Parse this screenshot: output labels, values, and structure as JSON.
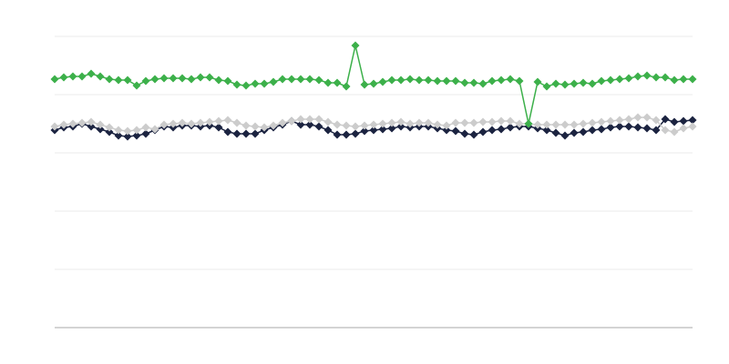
{
  "chart_data": {
    "type": "line",
    "title": "",
    "xlabel": "",
    "ylabel": "",
    "ylim": [
      0,
      320
    ],
    "grid": true,
    "legend": "none",
    "x_count": 71,
    "series": [
      {
        "color": "#1b2340",
        "marker": "diamond",
        "values": [
          217,
          220,
          221,
          224,
          221,
          218,
          215,
          211,
          210,
          211,
          213,
          217,
          221,
          220,
          222,
          222,
          221,
          222,
          220,
          215,
          213,
          213,
          213,
          217,
          220,
          223,
          227,
          223,
          223,
          221,
          217,
          212,
          212,
          213,
          216,
          217,
          218,
          219,
          221,
          220,
          221,
          221,
          219,
          217,
          216,
          213,
          212,
          215,
          217,
          218,
          220,
          221,
          221,
          219,
          217,
          214,
          211,
          214,
          215,
          217,
          218,
          220,
          221,
          221,
          220,
          219,
          217,
          229,
          226,
          227,
          228
        ]
      },
      {
        "color": "#cccccc",
        "marker": "diamond",
        "values": [
          221,
          223,
          224,
          225,
          226,
          223,
          220,
          217,
          216,
          217,
          220,
          218,
          223,
          224,
          225,
          224,
          225,
          226,
          227,
          228,
          225,
          222,
          221,
          220,
          222,
          225,
          227,
          229,
          229,
          229,
          226,
          223,
          222,
          221,
          222,
          223,
          224,
          225,
          226,
          224,
          225,
          225,
          223,
          222,
          225,
          225,
          225,
          226,
          226,
          227,
          227,
          224,
          224,
          223,
          223,
          223,
          223,
          223,
          224,
          225,
          226,
          227,
          228,
          229,
          231,
          231,
          228,
          217,
          215,
          219,
          221
        ]
      },
      {
        "color": "#3cb04a",
        "marker": "diamond",
        "values": [
          273,
          275,
          276,
          276,
          279,
          276,
          273,
          272,
          272,
          266,
          271,
          273,
          274,
          274,
          274,
          273,
          275,
          275,
          272,
          271,
          267,
          266,
          268,
          268,
          270,
          273,
          273,
          273,
          273,
          272,
          269,
          269,
          265,
          310,
          267,
          268,
          270,
          272,
          272,
          273,
          272,
          272,
          271,
          271,
          271,
          269,
          269,
          268,
          271,
          272,
          273,
          271,
          224,
          270,
          265,
          268,
          267,
          268,
          269,
          268,
          271,
          272,
          273,
          274,
          276,
          277,
          275,
          275,
          272,
          273,
          273
        ]
      }
    ]
  }
}
